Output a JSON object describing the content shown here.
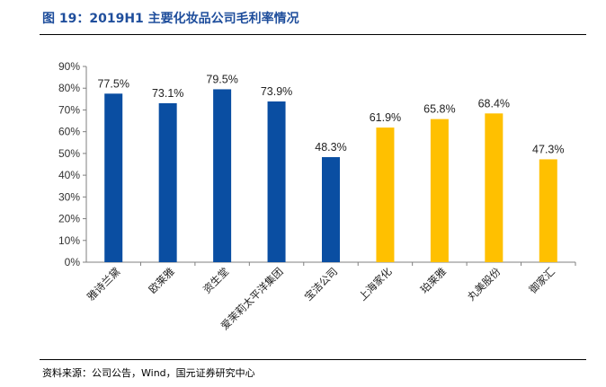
{
  "header": {
    "title": "图 19：2019H1 主要化妆品公司毛利率情况"
  },
  "footer": {
    "source": "资料来源：公司公告，Wind，国元证券研究中心"
  },
  "colors": {
    "foreign": "#0a4ea2",
    "domestic": "#ffc000"
  },
  "chart_data": {
    "type": "bar",
    "title": "2019H1 主要化妆品公司毛利率情况",
    "xlabel": "",
    "ylabel": "",
    "ylim": [
      0,
      90
    ],
    "ytick_step": 10,
    "grid": false,
    "legend": "none",
    "categories": [
      "雅诗兰黛",
      "欧莱雅",
      "资生堂",
      "爱茉莉太平洋集团",
      "宝洁公司",
      "上海家化",
      "珀莱雅",
      "丸美股份",
      "御家汇"
    ],
    "values": [
      77.5,
      73.1,
      79.5,
      73.9,
      48.3,
      61.9,
      65.8,
      68.4,
      47.3
    ],
    "value_labels": [
      "77.5%",
      "73.1%",
      "79.5%",
      "73.9%",
      "48.3%",
      "61.9%",
      "65.8%",
      "68.4%",
      "47.3%"
    ],
    "y_tick_labels": [
      "0%",
      "10%",
      "20%",
      "30%",
      "40%",
      "50%",
      "60%",
      "70%",
      "80%",
      "90%"
    ],
    "bar_colors": [
      "foreign",
      "foreign",
      "foreign",
      "foreign",
      "foreign",
      "domestic",
      "domestic",
      "domestic",
      "domestic"
    ]
  }
}
